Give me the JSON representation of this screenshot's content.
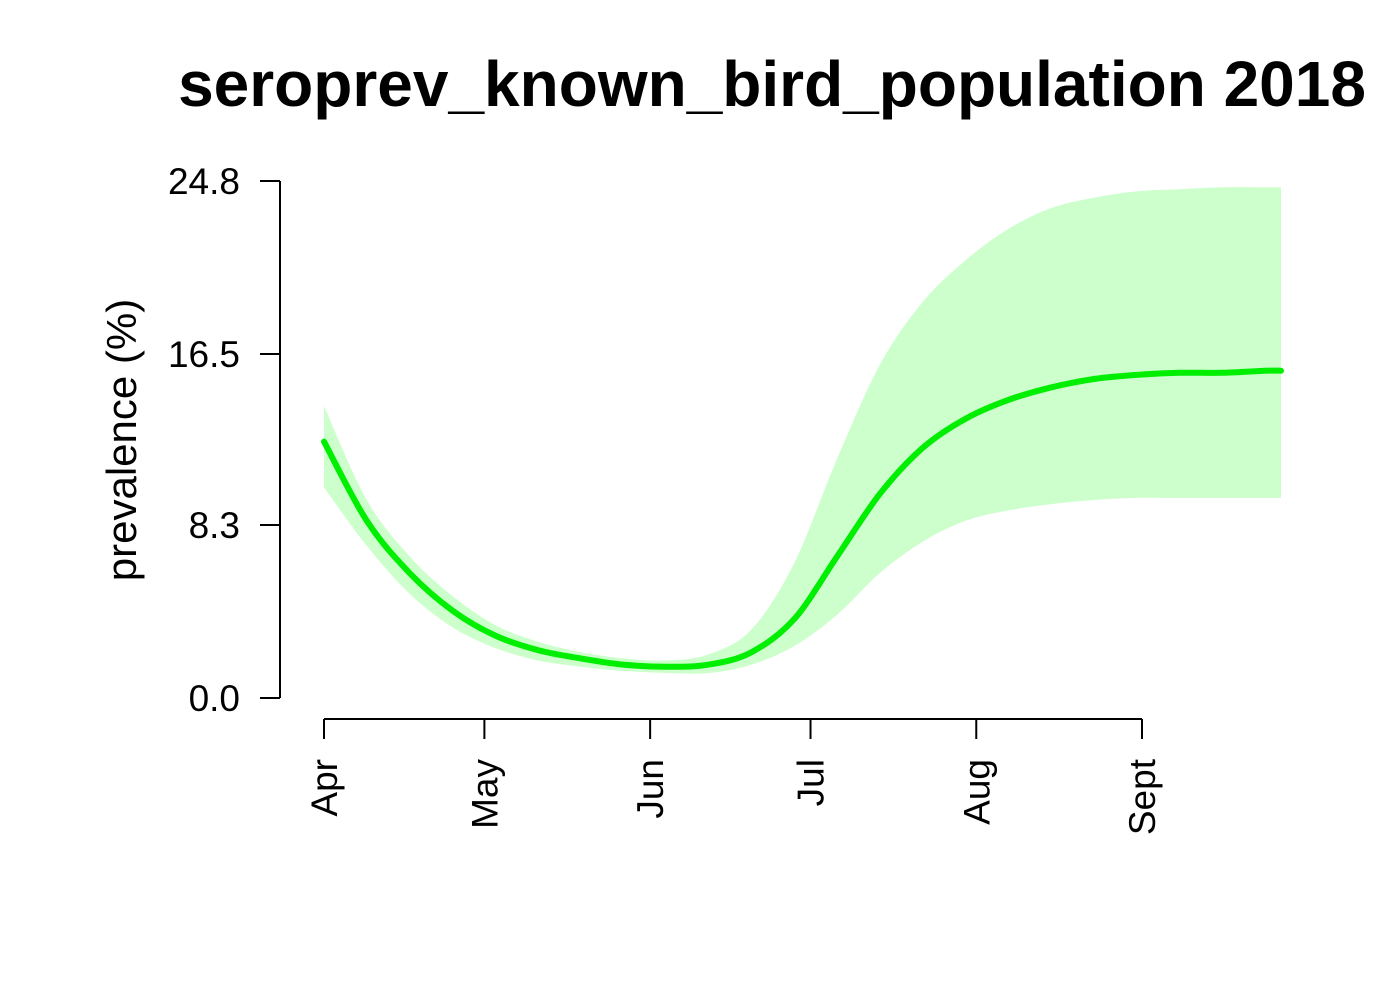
{
  "chart_data": {
    "type": "line",
    "title": "seroprev_known_bird_population 2018",
    "xlabel": "",
    "ylabel": "prevalence (%)",
    "x_axis": {
      "unit": "day-of-year",
      "range": [
        91,
        272
      ],
      "ticks": [
        {
          "label": "Apr",
          "day": 91
        },
        {
          "label": "May",
          "day": 121
        },
        {
          "label": "Jun",
          "day": 152
        },
        {
          "label": "Jul",
          "day": 182
        },
        {
          "label": "Aug",
          "day": 213
        },
        {
          "label": "Sept",
          "day": 244
        }
      ]
    },
    "y_axis": {
      "range": [
        0,
        24.8
      ],
      "ticks": [
        {
          "label": "0.0",
          "value": 0.0
        },
        {
          "label": "8.3",
          "value": 8.3
        },
        {
          "label": "16.5",
          "value": 16.5
        },
        {
          "label": "24.8",
          "value": 24.8
        }
      ]
    },
    "grid": false,
    "legend": "none",
    "series": [
      {
        "x": [
          91,
          99,
          107,
          115,
          123,
          131,
          139,
          147,
          155,
          163,
          171,
          179,
          187,
          195,
          203,
          211,
          219,
          227,
          235,
          243,
          251,
          259,
          267,
          270
        ],
        "y": [
          12.3,
          8.5,
          6.0,
          4.2,
          3.0,
          2.3,
          1.9,
          1.6,
          1.5,
          1.6,
          2.2,
          3.8,
          6.8,
          9.8,
          12.0,
          13.4,
          14.3,
          14.9,
          15.3,
          15.5,
          15.6,
          15.6,
          15.7,
          15.7
        ],
        "lower": [
          10.1,
          7.3,
          5.0,
          3.4,
          2.4,
          1.8,
          1.5,
          1.3,
          1.2,
          1.2,
          1.6,
          2.5,
          4.0,
          6.0,
          7.5,
          8.5,
          9.0,
          9.3,
          9.5,
          9.6,
          9.6,
          9.6,
          9.6,
          9.6
        ],
        "upper": [
          14.0,
          9.5,
          6.8,
          4.9,
          3.5,
          2.7,
          2.2,
          1.9,
          1.8,
          2.1,
          3.3,
          6.5,
          11.5,
          16.0,
          19.0,
          21.0,
          22.5,
          23.5,
          24.0,
          24.3,
          24.4,
          24.5,
          24.5,
          24.5
        ],
        "color": "#00ee00",
        "band_color": "#ccffcc"
      }
    ]
  }
}
